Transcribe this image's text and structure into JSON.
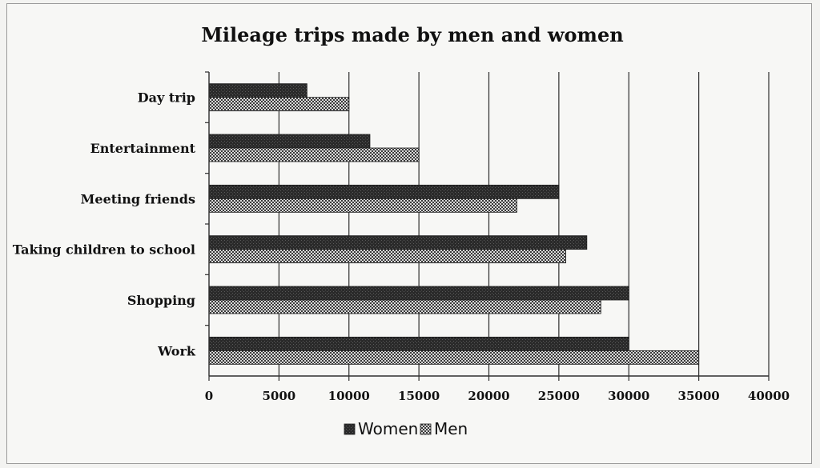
{
  "chart_data": {
    "type": "bar",
    "orientation": "horizontal",
    "title": "Mileage trips made by men and women",
    "categories": [
      "Day trip",
      "Entertainment",
      "Meeting friends",
      "Taking children to school",
      "Shopping",
      "Work"
    ],
    "series": [
      {
        "name": "Women",
        "values": [
          7000,
          11500,
          25000,
          27000,
          30000,
          30000
        ],
        "color": "#2b2b2b"
      },
      {
        "name": "Men",
        "values": [
          10000,
          15000,
          22000,
          25500,
          28000,
          35000
        ],
        "color": "#7a7a7a"
      }
    ],
    "xticks": [
      0,
      5000,
      10000,
      15000,
      20000,
      25000,
      30000,
      35000,
      40000
    ],
    "xlim": [
      0,
      40000
    ],
    "grid": true,
    "legend_position": "bottom"
  }
}
